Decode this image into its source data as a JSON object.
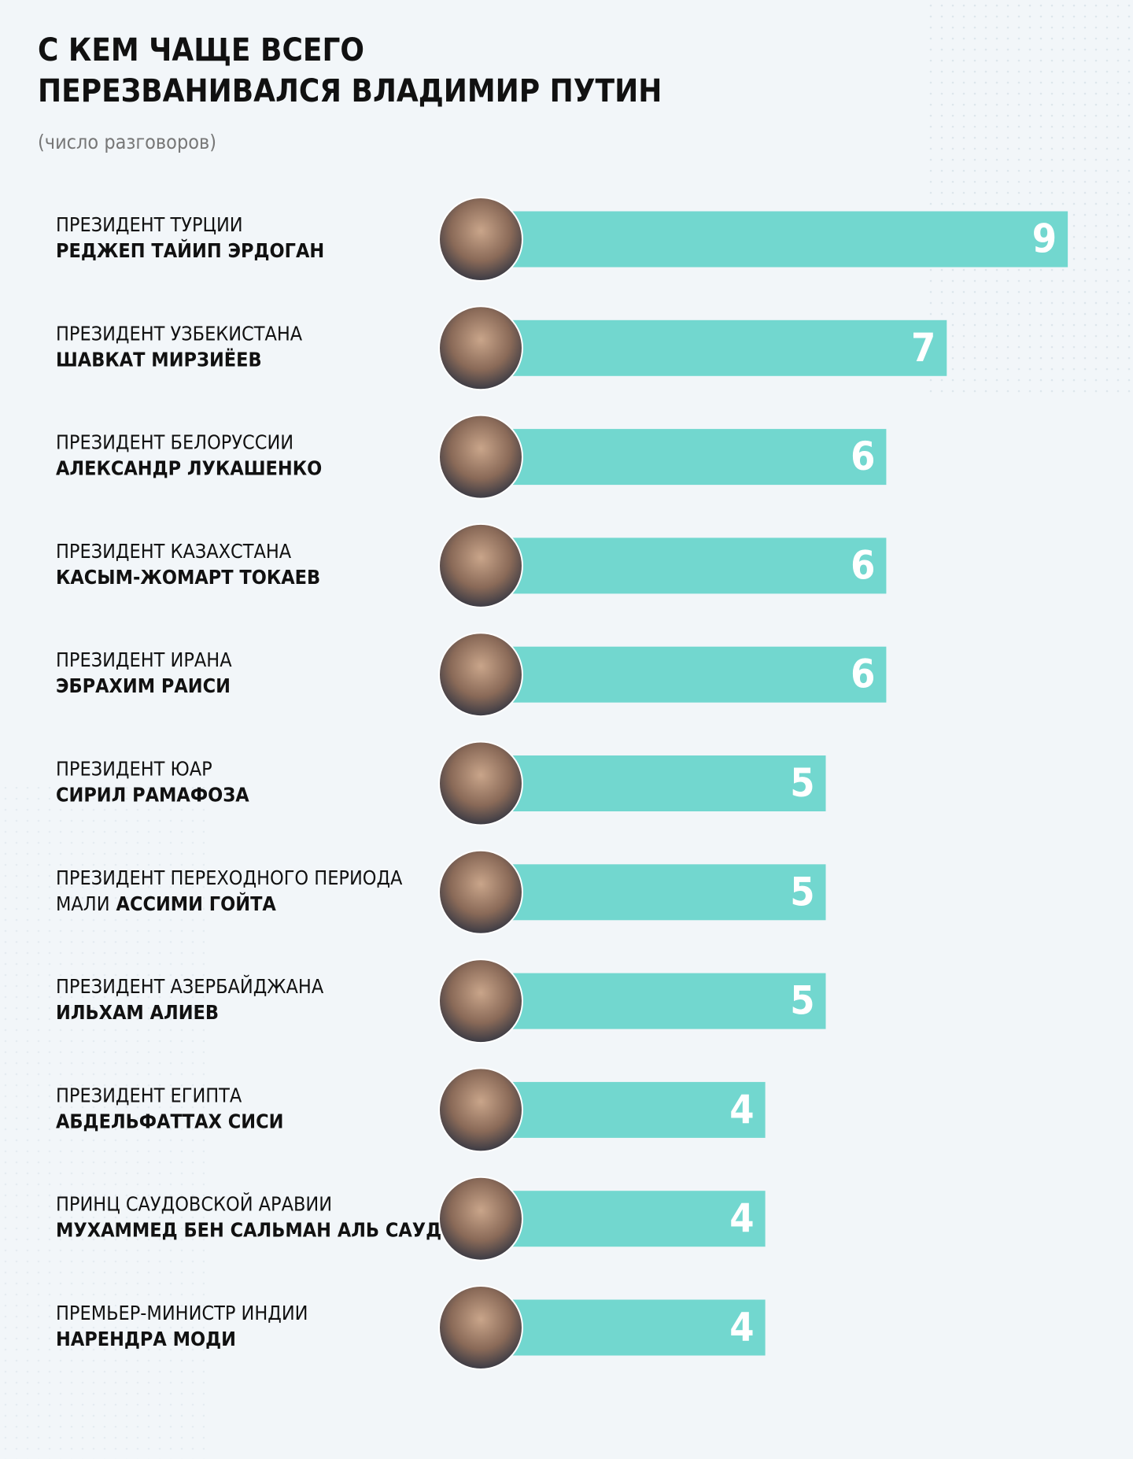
{
  "chart_data": {
    "type": "bar",
    "title": "С КЕМ ЧАЩЕ ВСЕГО ПЕРЕЗВАНИВАЛСЯ ВЛАДИМИР ПУТИН",
    "subtitle": "(число разговоров)",
    "categories": [
      "РЕДЖЕП ТАЙИП ЭРДОГАН",
      "ШАВКАТ МИРЗИЁЕВ",
      "АЛЕКСАНДР ЛУКАШЕНКО",
      "КАСЫМ-ЖОМАРТ ТОКАЕВ",
      "ЭБРАХИМ РАИСИ",
      "СИРИЛ РАМАФОЗА",
      "АССИМИ ГОЙТА",
      "ИЛЬХАМ АЛИЕВ",
      "АБДЕЛЬФАТТАХ СИСИ",
      "МУХАММЕД БЕН САЛЬМАН АЛЬ САУД",
      "НАРЕНДРА МОДИ"
    ],
    "roles": [
      "ПРЕЗИДЕНТ ТУРЦИИ",
      "ПРЕЗИДЕНТ УЗБЕКИСТАНА",
      "ПРЕЗИДЕНТ БЕЛОРУССИИ",
      "ПРЕЗИДЕНТ КАЗАХСТАНА",
      "ПРЕЗИДЕНТ ИРАНА",
      "ПРЕЗИДЕНТ ЮАР",
      [
        "ПРЕЗИДЕНТ ПЕРЕХОДНОГО ПЕРИОДА",
        "МАЛИ"
      ],
      "ПРЕЗИДЕНТ АЗЕРБАЙДЖАНА",
      "ПРЕЗИДЕНТ ЕГИПТА",
      "ПРИНЦ САУДОВСКОЙ АРАВИИ",
      "ПРЕМЬЕР-МИНИСТР ИНДИИ"
    ],
    "values": [
      9,
      7,
      6,
      6,
      6,
      5,
      5,
      5,
      4,
      4,
      4
    ],
    "color": "#72d7cf"
  }
}
